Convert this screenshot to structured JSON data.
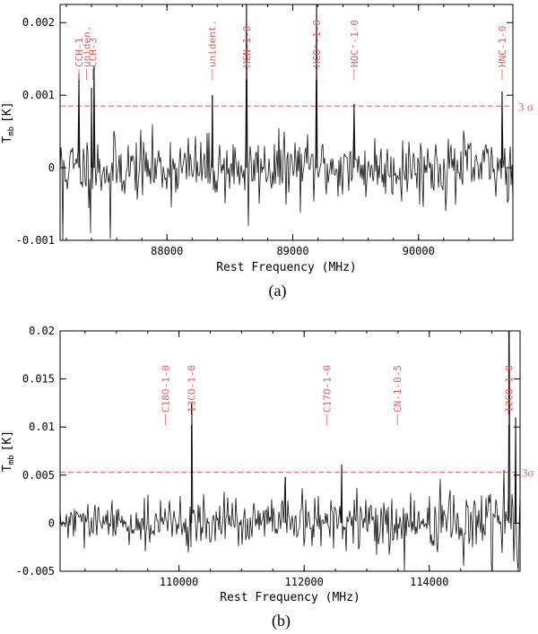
{
  "chart_data": [
    {
      "type": "line",
      "panel_label": "(a)",
      "xlabel": "Rest Frequency (MHz)",
      "ylabel_main": "T",
      "ylabel_sub": "mb",
      "ylabel_unit": "[K]",
      "xlim": [
        87150,
        90750
      ],
      "ylim": [
        -0.001,
        0.00225
      ],
      "x_ticks": [
        88000,
        89000,
        90000
      ],
      "x_tick_labels": [
        "88000",
        "89000",
        "90000"
      ],
      "y_ticks": [
        -0.001,
        0,
        0.001,
        0.002
      ],
      "y_tick_labels": [
        "-0.001",
        "0",
        "0.001",
        "0.002"
      ],
      "threshold": {
        "value": 0.00085,
        "label": "3 σ",
        "color": "#e06060"
      },
      "noise": {
        "sigma": 0.00022,
        "seed": 11,
        "channel_width": 4
      },
      "spikes": [
        {
          "x": 87300,
          "y": 0.0013
        },
        {
          "x": 87400,
          "y": 0.0011
        },
        {
          "x": 87420,
          "y": 0.0014
        },
        {
          "x": 88360,
          "y": 0.001
        },
        {
          "x": 88632,
          "y": 0.00225
        },
        {
          "x": 89189,
          "y": 0.00225
        },
        {
          "x": 89487,
          "y": 0.00088
        },
        {
          "x": 90664,
          "y": 0.00105
        }
      ],
      "dips": [
        {
          "x": 87170,
          "y": -0.001
        },
        {
          "x": 87390,
          "y": -0.0009
        },
        {
          "x": 87550,
          "y": -0.00098
        },
        {
          "x": 88650,
          "y": -0.0008
        }
      ],
      "lines": [
        {
          "name": "CCH-1",
          "x": 87300
        },
        {
          "name": "uniden.",
          "x": 87360
        },
        {
          "name": "CCH-3",
          "x": 87410
        },
        {
          "name": "unident.",
          "x": 88360
        },
        {
          "name": "HCN-1-0",
          "x": 88632
        },
        {
          "name": "HCO⁺-1-0",
          "x": 89189
        },
        {
          "name": "HOC⁺-1-0",
          "x": 89487
        },
        {
          "name": "HNC-1-0",
          "x": 90664
        }
      ]
    },
    {
      "type": "line",
      "panel_label": "(b)",
      "xlabel": "Rest Frequency (MHz)",
      "ylabel_main": "T",
      "ylabel_sub": "mb",
      "ylabel_unit": "[K]",
      "xlim": [
        108100,
        115450
      ],
      "ylim": [
        -0.005,
        0.02
      ],
      "x_ticks": [
        110000,
        112000,
        114000
      ],
      "x_tick_labels": [
        "110000",
        "112000",
        "114000"
      ],
      "y_ticks": [
        -0.005,
        0,
        0.005,
        0.01,
        0.015,
        0.02
      ],
      "y_tick_labels": [
        "-0.005",
        "0",
        "0.005",
        "0.01",
        "0.015",
        "0.02"
      ],
      "threshold": {
        "value": 0.0053,
        "label": "3σ",
        "color": "#e06060"
      },
      "noise": {
        "sigma": 0.0013,
        "seed": 29,
        "channel_width": 6
      },
      "spikes": [
        {
          "x": 110201,
          "y": 0.0125
        },
        {
          "x": 111700,
          "y": 0.0048
        },
        {
          "x": 112600,
          "y": 0.0061
        },
        {
          "x": 115271,
          "y": 0.02
        },
        {
          "x": 115380,
          "y": 0.011
        }
      ],
      "dips": [
        {
          "x": 113600,
          "y": -0.005
        },
        {
          "x": 115000,
          "y": -0.005
        },
        {
          "x": 115420,
          "y": -0.005
        }
      ],
      "lines": [
        {
          "name": "C18O-1-0",
          "x": 109782
        },
        {
          "name": "13CO-1-0",
          "x": 110201
        },
        {
          "name": "C17O-1-0",
          "x": 112359
        },
        {
          "name": "CN-1-0-5",
          "x": 113490
        },
        {
          "name": "12CO-1-0",
          "x": 115271
        }
      ]
    }
  ]
}
